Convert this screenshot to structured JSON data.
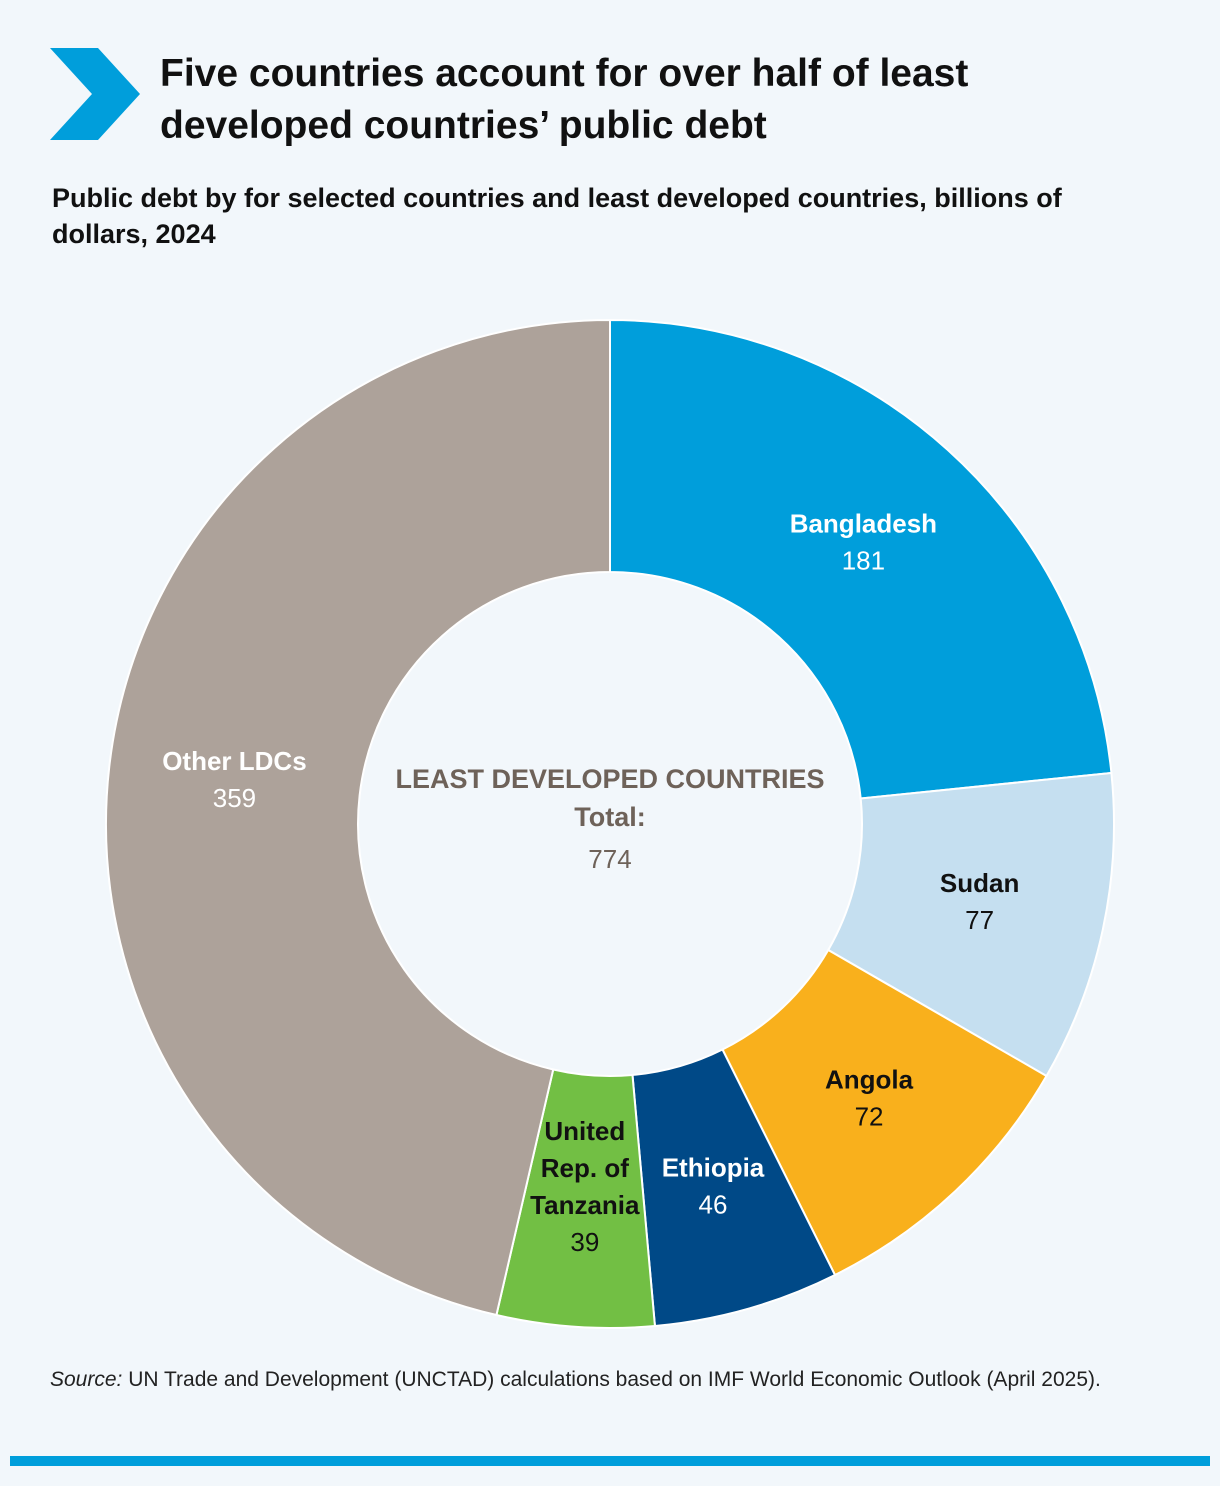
{
  "header": {
    "title": "Five countries account for over half of least developed countries’ public debt",
    "subtitle": "Public debt by for selected countries and least developed countries, billions of dollars, 2024",
    "icon": "chevron-right-icon",
    "accent_color": "#009edb"
  },
  "chart_data": {
    "type": "pie",
    "variant": "donut",
    "title": "Five countries account for over half of least developed countries’ public debt",
    "subtitle": "Public debt by for selected countries and least developed countries, billions of dollars, 2024",
    "center": {
      "label": "LEAST DEVELOPED COUNTRIES",
      "total_label": "Total:",
      "total_value": "774"
    },
    "slices": [
      {
        "name": "Bangladesh",
        "value": 181,
        "color": "#009edb",
        "text_color": "#ffffff"
      },
      {
        "name": "Sudan",
        "value": 77,
        "color": "#c5dff0",
        "text_color": "#111111"
      },
      {
        "name": "Angola",
        "value": 72,
        "color": "#f9b01c",
        "text_color": "#111111"
      },
      {
        "name": "Ethiopia",
        "value": 46,
        "color": "#004987",
        "text_color": "#ffffff"
      },
      {
        "name": "United Rep. of Tanzania",
        "name_lines": [
          "United",
          "Rep. of",
          "Tanzania"
        ],
        "value": 39,
        "color": "#72bf44",
        "text_color": "#111111"
      },
      {
        "name": "Other LDCs",
        "value": 359,
        "color": "#ada29a",
        "text_color": "#ffffff"
      }
    ]
  },
  "footer": {
    "source_label": "Source:",
    "source_text": " UN Trade and Development (UNCTAD) calculations based on IMF World Economic Outlook (April 2025)."
  }
}
